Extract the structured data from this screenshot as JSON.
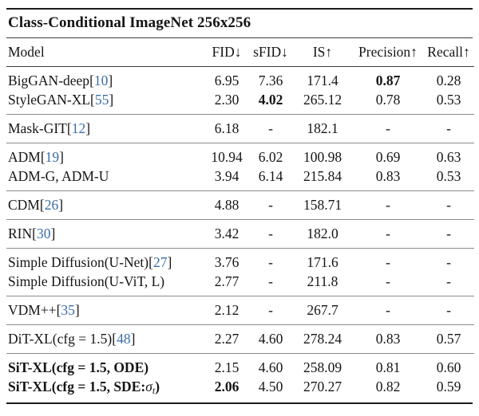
{
  "title": "Class-Conditional ImageNet 256x256",
  "colors": {
    "citation_blue": "#3a6dab",
    "text": "#151515",
    "rule_heavy": "#1c1c1c",
    "rule_mid": "#3c3c3c",
    "rule_group": "#8a8a8a"
  },
  "table": {
    "headers": [
      {
        "id": "model",
        "label": "Model"
      },
      {
        "id": "fid",
        "label": "FID↓"
      },
      {
        "id": "sfid",
        "label": "sFID↓"
      },
      {
        "id": "is",
        "label": "IS↑"
      },
      {
        "id": "precision",
        "label": "Precision↑"
      },
      {
        "id": "recall",
        "label": "Recall↑"
      }
    ],
    "groups": [
      {
        "rows": [
          {
            "model": [
              {
                "t": "BigGAN-deep"
              },
              {
                "t": "["
              },
              {
                "t": "10",
                "s": "cite"
              },
              {
                "t": "]"
              }
            ],
            "values": [
              "6.95",
              "7.36",
              "171.4",
              {
                "t": "0.87",
                "bold": true
              },
              "0.28"
            ]
          },
          {
            "model": [
              {
                "t": "StyleGAN-XL"
              },
              {
                "t": "["
              },
              {
                "t": "55",
                "s": "cite"
              },
              {
                "t": "]"
              }
            ],
            "values": [
              "2.30",
              {
                "t": "4.02",
                "bold": true
              },
              "265.12",
              "0.78",
              "0.53"
            ]
          }
        ]
      },
      {
        "rows": [
          {
            "model": [
              {
                "t": "Mask-GIT"
              },
              {
                "t": "["
              },
              {
                "t": "12",
                "s": "cite"
              },
              {
                "t": "]"
              }
            ],
            "values": [
              "6.18",
              "-",
              "182.1",
              "-",
              "-"
            ]
          }
        ]
      },
      {
        "rows": [
          {
            "model": [
              {
                "t": "ADM"
              },
              {
                "t": "["
              },
              {
                "t": "19",
                "s": "cite"
              },
              {
                "t": "]"
              }
            ],
            "values": [
              "10.94",
              "6.02",
              "100.98",
              "0.69",
              "0.63"
            ]
          },
          {
            "model": [
              {
                "t": "ADM-G, ADM-U"
              }
            ],
            "values": [
              "3.94",
              "6.14",
              "215.84",
              "0.83",
              "0.53"
            ]
          }
        ]
      },
      {
        "rows": [
          {
            "model": [
              {
                "t": "CDM"
              },
              {
                "t": "["
              },
              {
                "t": "26",
                "s": "cite"
              },
              {
                "t": "]"
              }
            ],
            "values": [
              "4.88",
              "-",
              "158.71",
              "-",
              "-"
            ]
          }
        ]
      },
      {
        "rows": [
          {
            "model": [
              {
                "t": "RIN"
              },
              {
                "t": "["
              },
              {
                "t": "30",
                "s": "cite"
              },
              {
                "t": "]"
              }
            ],
            "values": [
              "3.42",
              "-",
              "182.0",
              "-",
              "-"
            ]
          }
        ]
      },
      {
        "rows": [
          {
            "model": [
              {
                "t": "Simple Diffusion(U-Net)"
              },
              {
                "t": "["
              },
              {
                "t": "27",
                "s": "cite"
              },
              {
                "t": "]"
              }
            ],
            "values": [
              "3.76",
              "-",
              "171.6",
              "-",
              "-"
            ]
          },
          {
            "model": [
              {
                "t": "Simple Diffusion(U-ViT, L)"
              }
            ],
            "values": [
              "2.77",
              "-",
              "211.8",
              "-",
              "-"
            ]
          }
        ]
      },
      {
        "rows": [
          {
            "model": [
              {
                "t": "VDM++"
              },
              {
                "t": "["
              },
              {
                "t": "35",
                "s": "cite"
              },
              {
                "t": "]"
              }
            ],
            "values": [
              "2.12",
              "-",
              "267.7",
              "-",
              "-"
            ]
          }
        ]
      },
      {
        "rows": [
          {
            "model": [
              {
                "t": "DiT-XL(cfg = 1.5)"
              },
              {
                "t": "["
              },
              {
                "t": "48",
                "s": "cite"
              },
              {
                "t": "]"
              }
            ],
            "values": [
              "2.27",
              "4.60",
              "278.24",
              "0.83",
              "0.57"
            ]
          }
        ]
      },
      {
        "rows": [
          {
            "model": [
              {
                "t": "SiT-XL(cfg = 1.5, ODE)",
                "s": "bold"
              }
            ],
            "values": [
              "2.15",
              "4.60",
              "258.09",
              "0.81",
              "0.60"
            ]
          },
          {
            "model": [
              {
                "t": "SiT-XL(cfg = 1.5, SDE:",
                "s": "bold"
              },
              {
                "t": "σ",
                "s": "mathit"
              },
              {
                "t": "t",
                "s": "sub"
              },
              {
                "t": ")",
                "s": "bold"
              }
            ],
            "values": [
              {
                "t": "2.06",
                "bold": true
              },
              "4.50",
              "270.27",
              "0.82",
              "0.59"
            ]
          }
        ]
      }
    ]
  }
}
